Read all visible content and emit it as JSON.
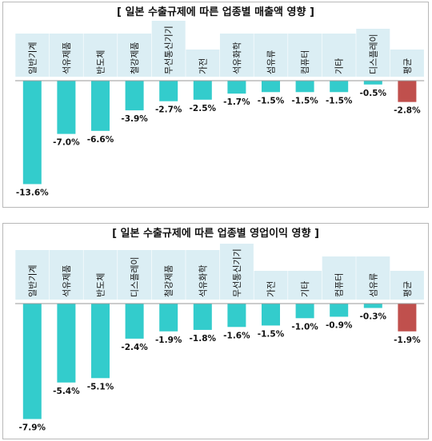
{
  "chart_data": [
    {
      "type": "bar",
      "title": "[ 일본 수출규제에 따른 업종별 매출액 영향 ]",
      "categories": [
        "일반기계",
        "석유제품",
        "반도체",
        "철강제품",
        "무선통신기기",
        "가전",
        "석유화학",
        "섬유류",
        "컴퓨터",
        "기타",
        "디스플레이",
        "평균"
      ],
      "values": [
        -13.6,
        -7.0,
        -6.6,
        -3.9,
        -2.7,
        -2.5,
        -1.7,
        -1.5,
        -1.5,
        -1.5,
        -0.5,
        -2.8
      ],
      "value_labels": [
        "-13.6%",
        "-7.0%",
        "-6.6%",
        "-3.9%",
        "-2.7%",
        "-2.5%",
        "-1.7%",
        "-1.5%",
        "-1.5%",
        "-1.5%",
        "-0.5%",
        "-2.8%"
      ],
      "ylim": [
        -14.5,
        0
      ],
      "grid": false,
      "colors": {
        "bar": "#33cccc",
        "average": "#c0504d",
        "label_box": "#dbeef4"
      }
    },
    {
      "type": "bar",
      "title": "[ 일본 수출규제에 따른 업종별 영업이익 영향 ]",
      "categories": [
        "일반기계",
        "석유제품",
        "반도체",
        "디스플레이",
        "철강제품",
        "석유화학",
        "무선통신기기",
        "가전",
        "기타",
        "컴퓨터",
        "섬유류",
        "평균"
      ],
      "values": [
        -7.9,
        -5.4,
        -5.1,
        -2.4,
        -1.9,
        -1.8,
        -1.6,
        -1.5,
        -1.0,
        -0.9,
        -0.3,
        -1.9
      ],
      "value_labels": [
        "-7.9%",
        "-5.4%",
        "-5.1%",
        "-2.4%",
        "-1.9%",
        "-1.8%",
        "-1.6%",
        "-1.5%",
        "-1.0%",
        "-0.9%",
        "-0.3%",
        "-1.9%"
      ],
      "ylim": [
        -8.2,
        0
      ],
      "grid": false,
      "colors": {
        "bar": "#33cccc",
        "average": "#c0504d",
        "label_box": "#dbeef4"
      }
    }
  ]
}
